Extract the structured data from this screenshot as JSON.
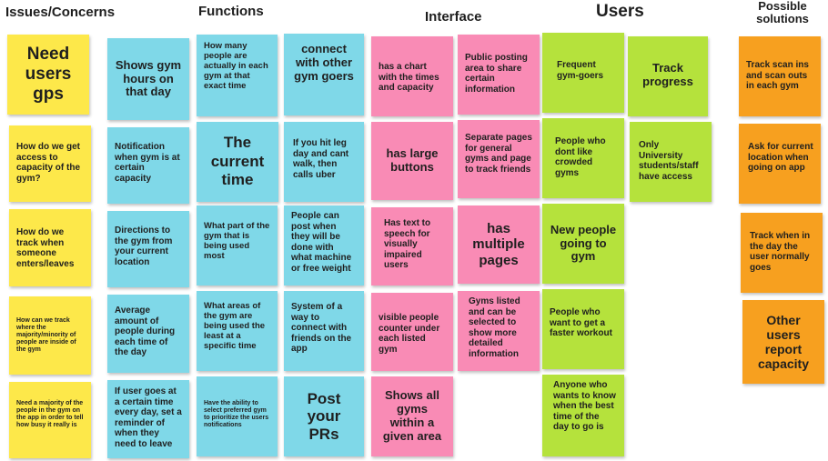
{
  "headers": {
    "issues": "Issues/Concerns",
    "functions": "Functions",
    "interface": "Interface",
    "users": "Users",
    "solutions": "Possible solutions"
  },
  "notes": {
    "issues": [
      "Need users gps",
      "How do we get access to capacity of the gym?",
      "How do we track when someone enters/leaves",
      "How can we track where the majority/minority of people are inside of the gym",
      "Need a majority of the people in the gym on the app in order to tell how busy it really is"
    ],
    "functions_col1": [
      "Shows gym hours on that day",
      "Notification when gym is at certain capacity",
      "Directions to the gym from your current location",
      "Average amount of people during each time of the day",
      "If user goes at a certain time every day, set a reminder of when they need to leave"
    ],
    "functions_col2": [
      "How many people are actually in each gym at that exact time",
      "The current time",
      "What part of the gym that is being used most",
      "What areas of the gym are being used the least at a specific time",
      "Have the ability to select preferred gym to prioritize the users notifications"
    ],
    "functions_col3": [
      "connect with other gym goers",
      "If you hit leg day and cant walk, then calls uber",
      "People can post when they will be done with what machine or free weight",
      "System of a way to connect with friends on the app",
      "Post your PRs"
    ],
    "interface_col1": [
      "has a chart with the times and capacity",
      "has large buttons",
      "Has text to speech for visually impaired users",
      "visible people counter under each listed gym",
      "Shows all gyms within a given area"
    ],
    "interface_col2": [
      "Public posting area to share certain information",
      "Separate pages for general gyms and page to track friends",
      "has multiple pages",
      "Gyms listed and can be selected to show more detailed information"
    ],
    "users_col1": [
      "Frequent gym-goers",
      "People who dont like crowded gyms",
      "New people going to gym",
      "People who want to get a faster workout",
      "Anyone who wants to know when the best time of the day to go is"
    ],
    "users_col2": [
      "Track progress",
      "Only University students/staff have access"
    ],
    "solutions": [
      "Track scan ins and scan outs in each gym",
      "Ask for current location when going on app",
      "Track when in the day the user normally goes",
      "Other users report capacity"
    ]
  }
}
